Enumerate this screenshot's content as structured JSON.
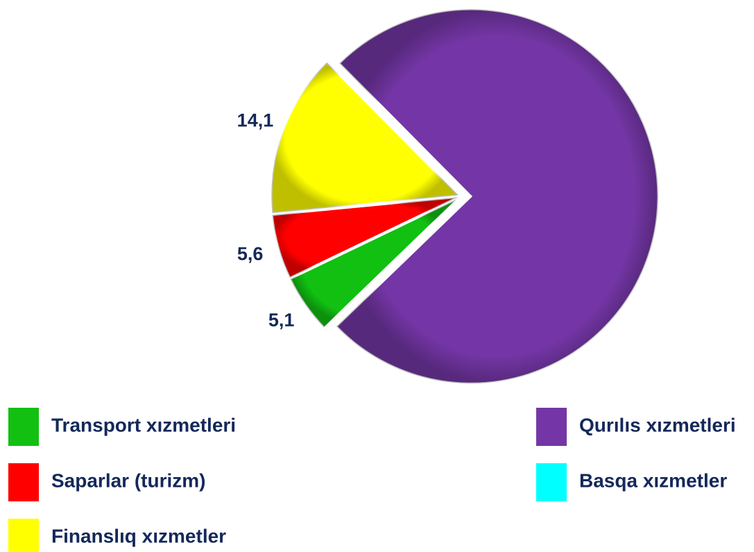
{
  "chart_data": {
    "type": "pie",
    "categories": [
      "Transport xızmetleri",
      "Saparlar (turizm)",
      "Finanslıq xızmetler",
      "Qurılıs xızmetleri",
      "Basqa xızmetler"
    ],
    "values": [
      5.1,
      5.6,
      14.1,
      75.2,
      0
    ],
    "value_labels": [
      "5,1",
      "5,6",
      "14,1",
      null,
      null
    ],
    "colors": [
      "#11c011",
      "#ff0000",
      "#ffff00",
      "#7436a6",
      "#00ffff"
    ]
  }
}
